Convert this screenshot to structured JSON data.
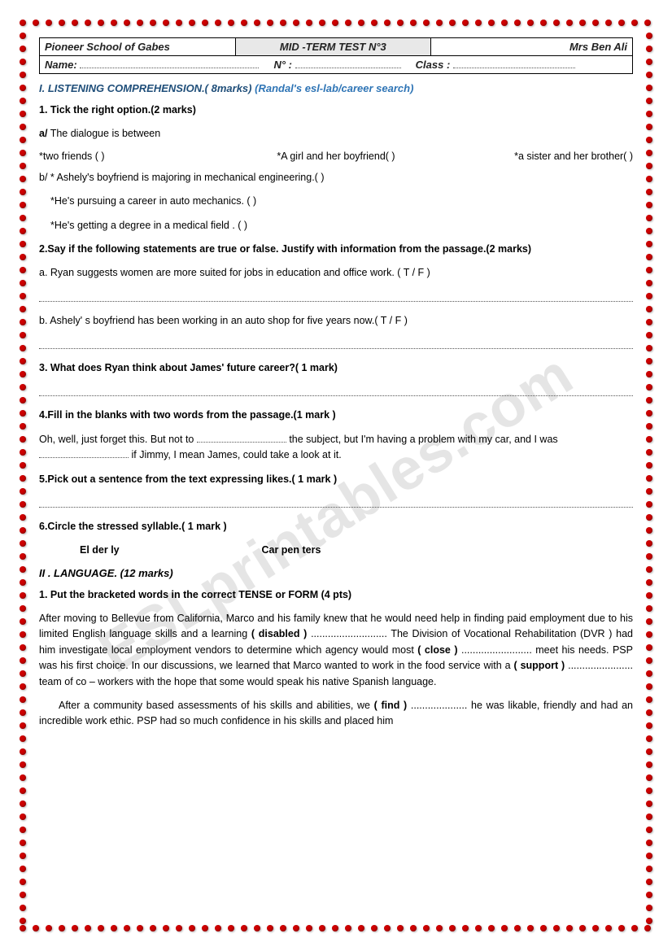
{
  "header": {
    "school": "Pioneer School of Gabes",
    "test_title": "MID -TERM TEST N°3",
    "teacher": "Mrs Ben Ali",
    "name_label": "Name:",
    "num_label": "N° :",
    "class_label": "Class :"
  },
  "section1": {
    "heading": "I. LISTENING COMPREHENSION.( 8marks)",
    "subheading": "(Randal's esl-lab/career search)"
  },
  "q1": {
    "heading": "1. Tick the right option.(2 marks)",
    "a_label": "a/ The dialogue is between",
    "a_opt1": "*two friends (     )",
    "a_opt2": "*A girl and her boyfriend(     )",
    "a_opt3": "*a sister and her brother(    )",
    "b_line1": "b/ * Ashely's boyfriend is majoring in mechanical engineering.(     )",
    "b_line2": "*He's pursuing a career in auto mechanics. (     )",
    "b_line3": "*He's getting a degree in a medical field . (     )"
  },
  "q2": {
    "heading": "2.Say if the following statements are true or false. Justify with information from the passage.(2 marks)",
    "a": "a. Ryan suggests women are more suited for jobs in education and office work. (  T  /  F   )",
    "b": "b. Ashely' s boyfriend has been working in an auto shop for five years now.(  T  /  F   )"
  },
  "q3": {
    "heading": "3. What does Ryan think about James' future career?( 1 mark)"
  },
  "q4": {
    "heading": "4.Fill in the blanks with two words from the passage.(1 mark )",
    "text_before": "Oh, well, just forget this. But not to ",
    "text_mid": "the subject, but I'm having a problem with my car, and I was ",
    "text_after": "if Jimmy, I mean James, could take a look at it."
  },
  "q5": {
    "heading": "5.Pick out a sentence from the text  expressing likes.( 1 mark )"
  },
  "q6": {
    "heading": "6.Circle the stressed syllable.( 1 mark )",
    "w1": "El der ly",
    "w2": "Car pen ters"
  },
  "section2": {
    "heading": "II . LANGUAGE. (12 marks)"
  },
  "lang1": {
    "heading": "1. Put the bracketed words in the correct TENSE or FORM (4 pts)",
    "p1a": "After  moving  to Bellevue from California,  Marco  and  his  family  knew that he would need help in finding paid employment due to his limited English language skills and a learning ",
    "p1b": "( disabled )",
    "p1c": " ........................... The Division of Vocational Rehabilitation (DVR )  had him investigate local employment vendors to determine which agency would most  ",
    "p1d": "( close )",
    "p1e": "  ......................... meet his needs. PSP was his first choice. In our discussions, we learned that Marco wanted to work in the food service with a  ",
    "p1f": "( support )",
    "p1g": " ....................... team of co – workers  with the hope that some would speak his native Spanish language.",
    "p2a": "After a community based assessments of his skills and abilities, we ",
    "p2b": "( find )",
    "p2c": "   ....................   he was likable, friendly and had an incredible work ethic.  PSP had so much confidence in his skills and placed him"
  },
  "watermark": "ESLprintables.com"
}
